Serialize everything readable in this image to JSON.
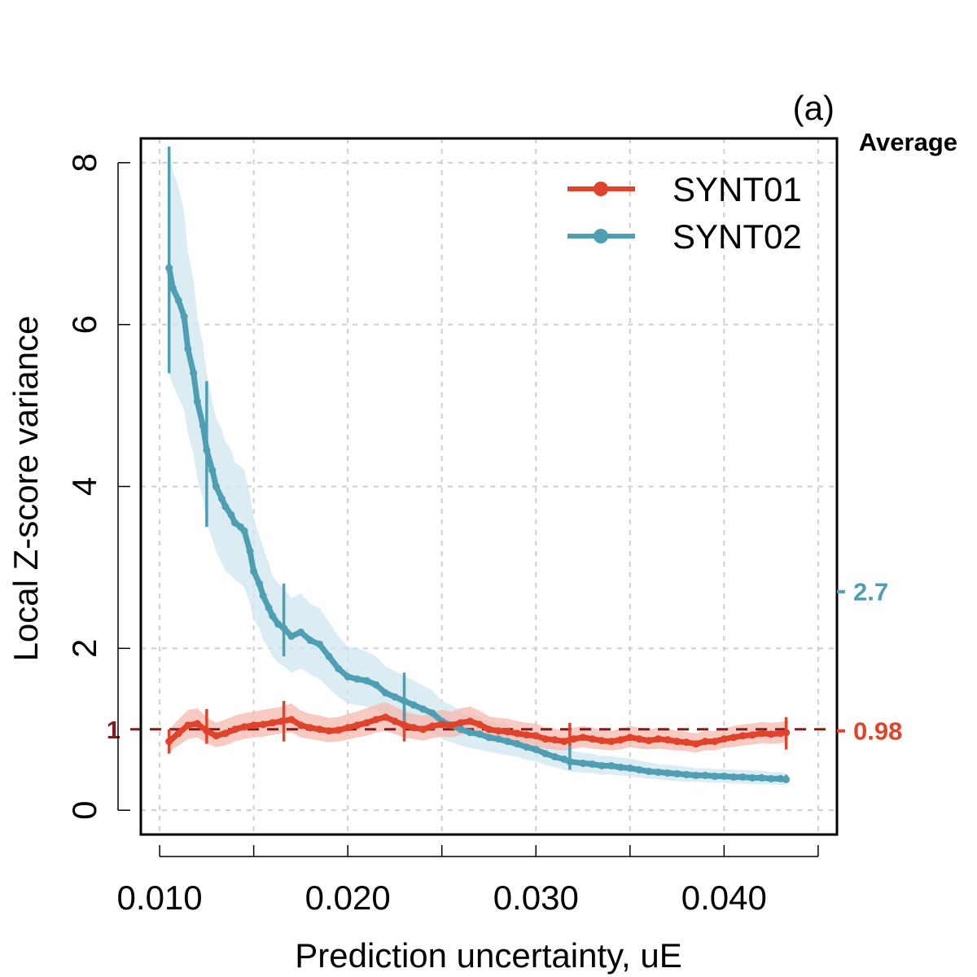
{
  "chart_data": {
    "type": "line",
    "panel_label": "(a)",
    "title": "",
    "xlabel": "Prediction uncertainty, uE",
    "ylabel": "Local Z-score variance",
    "xlim": [
      0.009,
      0.046
    ],
    "ylim": [
      -0.3,
      8.3
    ],
    "x_ticks": [
      0.01,
      0.015,
      0.02,
      0.025,
      0.03,
      0.035,
      0.04,
      0.045
    ],
    "x_tick_labels": [
      "0.010",
      "0.020",
      "0.030",
      "0.040"
    ],
    "x_tick_label_values": [
      0.01,
      0.02,
      0.03,
      0.04
    ],
    "y_ticks": [
      0,
      2,
      4,
      6,
      8
    ],
    "y_tick_labels": [
      "0",
      "2",
      "4",
      "6",
      "8"
    ],
    "grid": true,
    "reference_line": {
      "y": 1,
      "label": "1",
      "color": "#7a1f1f"
    },
    "average_header": "Average",
    "averages": [
      {
        "series": "SYNT02",
        "value": 2.7,
        "label": "2.7",
        "color": "#4e9fb3"
      },
      {
        "series": "SYNT01",
        "value": 0.98,
        "label": "0.98",
        "color": "#e0422a"
      }
    ],
    "legend": {
      "position": "top-right",
      "entries": [
        "SYNT01",
        "SYNT02"
      ]
    },
    "series": [
      {
        "name": "SYNT01",
        "color": "#e0422a",
        "band_color": "#f4b8ae",
        "x": [
          0.0105,
          0.011,
          0.0115,
          0.012,
          0.0125,
          0.013,
          0.0135,
          0.014,
          0.0145,
          0.015,
          0.0155,
          0.016,
          0.0165,
          0.017,
          0.0175,
          0.018,
          0.0185,
          0.019,
          0.0195,
          0.02,
          0.0205,
          0.021,
          0.0215,
          0.022,
          0.0225,
          0.023,
          0.0235,
          0.024,
          0.0245,
          0.025,
          0.0255,
          0.026,
          0.0265,
          0.027,
          0.0275,
          0.028,
          0.0285,
          0.029,
          0.0295,
          0.03,
          0.0305,
          0.031,
          0.0315,
          0.032,
          0.0325,
          0.033,
          0.0335,
          0.034,
          0.0345,
          0.035,
          0.0355,
          0.036,
          0.0365,
          0.037,
          0.0375,
          0.038,
          0.0385,
          0.039,
          0.0395,
          0.04,
          0.0405,
          0.041,
          0.0415,
          0.042,
          0.0425,
          0.043,
          0.0433
        ],
        "y": [
          0.85,
          0.95,
          1.05,
          1.07,
          0.98,
          0.92,
          0.95,
          1.0,
          1.03,
          1.05,
          1.06,
          1.08,
          1.1,
          1.12,
          1.05,
          1.02,
          1.0,
          0.98,
          0.99,
          1.02,
          1.05,
          1.08,
          1.12,
          1.15,
          1.1,
          1.05,
          1.02,
          1.0,
          1.04,
          1.06,
          1.05,
          1.08,
          1.1,
          1.06,
          1.0,
          0.98,
          0.97,
          0.95,
          0.93,
          0.92,
          0.88,
          0.87,
          0.85,
          0.88,
          0.9,
          0.88,
          0.86,
          0.85,
          0.87,
          0.9,
          0.88,
          0.86,
          0.88,
          0.87,
          0.85,
          0.84,
          0.82,
          0.85,
          0.85,
          0.88,
          0.9,
          0.92,
          0.93,
          0.95,
          0.94,
          0.95,
          0.96
        ],
        "lower": [
          0.72,
          0.8,
          0.88,
          0.9,
          0.83,
          0.78,
          0.8,
          0.85,
          0.88,
          0.9,
          0.91,
          0.93,
          0.95,
          0.96,
          0.9,
          0.88,
          0.86,
          0.84,
          0.85,
          0.87,
          0.9,
          0.92,
          0.96,
          0.98,
          0.94,
          0.9,
          0.88,
          0.86,
          0.89,
          0.91,
          0.9,
          0.93,
          0.95,
          0.91,
          0.86,
          0.84,
          0.83,
          0.82,
          0.8,
          0.79,
          0.76,
          0.75,
          0.74,
          0.76,
          0.78,
          0.76,
          0.75,
          0.74,
          0.75,
          0.78,
          0.76,
          0.75,
          0.76,
          0.75,
          0.74,
          0.73,
          0.71,
          0.74,
          0.74,
          0.77,
          0.78,
          0.8,
          0.81,
          0.83,
          0.82,
          0.83,
          0.84
        ],
        "upper": [
          1.0,
          1.12,
          1.24,
          1.26,
          1.15,
          1.08,
          1.12,
          1.17,
          1.2,
          1.22,
          1.24,
          1.26,
          1.28,
          1.32,
          1.23,
          1.19,
          1.17,
          1.14,
          1.15,
          1.19,
          1.22,
          1.26,
          1.3,
          1.34,
          1.28,
          1.22,
          1.19,
          1.17,
          1.21,
          1.24,
          1.22,
          1.26,
          1.28,
          1.23,
          1.16,
          1.14,
          1.13,
          1.1,
          1.08,
          1.07,
          1.02,
          1.01,
          0.98,
          1.02,
          1.04,
          1.02,
          1.0,
          0.98,
          1.01,
          1.04,
          1.02,
          1.0,
          1.02,
          1.01,
          0.98,
          0.97,
          0.95,
          0.98,
          0.98,
          1.01,
          1.04,
          1.06,
          1.07,
          1.09,
          1.08,
          1.09,
          1.1
        ],
        "error_bars": [
          {
            "x": 0.0105,
            "lower": 0.7,
            "upper": 1.0
          },
          {
            "x": 0.0125,
            "lower": 0.82,
            "upper": 1.25
          },
          {
            "x": 0.0166,
            "lower": 0.85,
            "upper": 1.35
          },
          {
            "x": 0.023,
            "lower": 0.85,
            "upper": 1.25
          },
          {
            "x": 0.0318,
            "lower": 0.72,
            "upper": 1.08
          },
          {
            "x": 0.0433,
            "lower": 0.75,
            "upper": 1.15
          }
        ]
      },
      {
        "name": "SYNT02",
        "color": "#4e9fb3",
        "band_color": "#cfe6ee",
        "x": [
          0.0105,
          0.0107,
          0.011,
          0.0113,
          0.0115,
          0.0118,
          0.012,
          0.0123,
          0.0125,
          0.0128,
          0.013,
          0.0133,
          0.0135,
          0.0138,
          0.014,
          0.0143,
          0.0145,
          0.0148,
          0.015,
          0.0153,
          0.0155,
          0.0158,
          0.016,
          0.0163,
          0.0166,
          0.017,
          0.0175,
          0.018,
          0.0185,
          0.019,
          0.0195,
          0.02,
          0.0205,
          0.021,
          0.0215,
          0.022,
          0.0225,
          0.023,
          0.0235,
          0.024,
          0.0245,
          0.025,
          0.0255,
          0.026,
          0.0265,
          0.027,
          0.0275,
          0.028,
          0.0285,
          0.029,
          0.0295,
          0.03,
          0.0305,
          0.031,
          0.0315,
          0.0318,
          0.0325,
          0.033,
          0.0335,
          0.034,
          0.0345,
          0.035,
          0.0355,
          0.036,
          0.0365,
          0.037,
          0.0375,
          0.038,
          0.0385,
          0.039,
          0.0395,
          0.04,
          0.0405,
          0.041,
          0.0415,
          0.042,
          0.0425,
          0.043,
          0.0433
        ],
        "y": [
          6.7,
          6.45,
          6.3,
          6.1,
          5.7,
          5.4,
          5.05,
          4.75,
          4.45,
          4.2,
          4.0,
          3.85,
          3.75,
          3.65,
          3.55,
          3.5,
          3.45,
          3.2,
          2.95,
          2.8,
          2.65,
          2.5,
          2.4,
          2.3,
          2.25,
          2.15,
          2.2,
          2.1,
          2.05,
          1.9,
          1.75,
          1.65,
          1.62,
          1.6,
          1.55,
          1.45,
          1.4,
          1.35,
          1.3,
          1.25,
          1.2,
          1.1,
          1.05,
          1.0,
          0.96,
          0.94,
          0.9,
          0.88,
          0.85,
          0.82,
          0.78,
          0.75,
          0.7,
          0.66,
          0.63,
          0.6,
          0.58,
          0.57,
          0.55,
          0.55,
          0.53,
          0.52,
          0.5,
          0.48,
          0.47,
          0.46,
          0.45,
          0.44,
          0.43,
          0.43,
          0.42,
          0.42,
          0.41,
          0.41,
          0.4,
          0.4,
          0.39,
          0.39,
          0.38
        ],
        "lower": [
          5.4,
          5.25,
          5.1,
          4.95,
          4.65,
          4.4,
          4.1,
          3.85,
          3.55,
          3.35,
          3.2,
          3.05,
          2.95,
          2.9,
          2.85,
          2.8,
          2.75,
          2.55,
          2.35,
          2.25,
          2.1,
          2.0,
          1.9,
          1.82,
          1.78,
          1.7,
          1.75,
          1.68,
          1.62,
          1.5,
          1.4,
          1.32,
          1.3,
          1.28,
          1.23,
          1.15,
          1.12,
          1.08,
          1.04,
          1.0,
          0.96,
          0.88,
          0.84,
          0.8,
          0.77,
          0.75,
          0.72,
          0.7,
          0.68,
          0.66,
          0.62,
          0.6,
          0.56,
          0.53,
          0.5,
          0.48,
          0.46,
          0.46,
          0.44,
          0.44,
          0.43,
          0.42,
          0.4,
          0.39,
          0.38,
          0.37,
          0.36,
          0.35,
          0.35,
          0.35,
          0.34,
          0.34,
          0.33,
          0.33,
          0.32,
          0.32,
          0.32,
          0.31,
          0.31
        ],
        "upper": [
          8.2,
          7.9,
          7.7,
          7.4,
          6.9,
          6.55,
          6.1,
          5.75,
          5.4,
          5.05,
          4.85,
          4.7,
          4.55,
          4.45,
          4.3,
          4.25,
          4.2,
          3.9,
          3.6,
          3.4,
          3.25,
          3.05,
          2.9,
          2.8,
          2.75,
          2.62,
          2.68,
          2.55,
          2.5,
          2.32,
          2.15,
          2.02,
          2.0,
          1.96,
          1.9,
          1.78,
          1.72,
          1.66,
          1.6,
          1.54,
          1.48,
          1.35,
          1.3,
          1.23,
          1.18,
          1.16,
          1.1,
          1.08,
          1.04,
          1.0,
          0.95,
          0.92,
          0.86,
          0.81,
          0.77,
          0.74,
          0.71,
          0.7,
          0.67,
          0.67,
          0.65,
          0.64,
          0.61,
          0.59,
          0.57,
          0.56,
          0.55,
          0.54,
          0.52,
          0.52,
          0.51,
          0.51,
          0.5,
          0.5,
          0.49,
          0.49,
          0.47,
          0.47,
          0.46
        ],
        "error_bars": [
          {
            "x": 0.0105,
            "lower": 5.4,
            "upper": 8.2
          },
          {
            "x": 0.0125,
            "lower": 3.5,
            "upper": 5.3
          },
          {
            "x": 0.0166,
            "lower": 1.9,
            "upper": 2.8
          },
          {
            "x": 0.023,
            "lower": 1.1,
            "upper": 1.7
          },
          {
            "x": 0.0318,
            "lower": 0.5,
            "upper": 0.8
          },
          {
            "x": 0.0433,
            "lower": 0.34,
            "upper": 0.44
          }
        ]
      }
    ]
  }
}
